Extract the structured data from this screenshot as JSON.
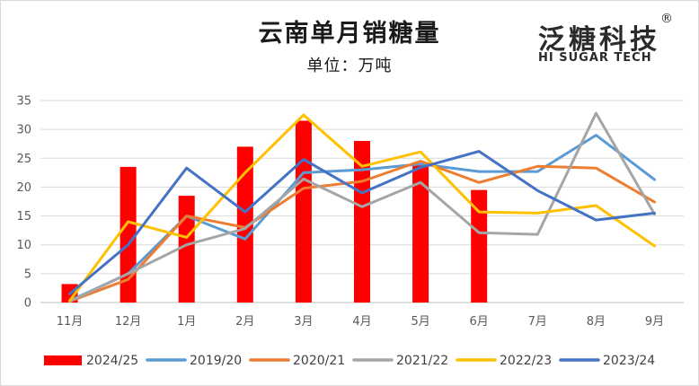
{
  "chart_data": {
    "type": "bar",
    "title": "云南单月销糖量",
    "subtitle": "单位：万吨",
    "categories": [
      "11月",
      "12月",
      "1月",
      "2月",
      "3月",
      "4月",
      "5月",
      "6月",
      "7月",
      "8月",
      "9月"
    ],
    "ylim": [
      0,
      35
    ],
    "yticks": [
      0,
      5,
      10,
      15,
      20,
      25,
      30,
      35
    ],
    "grid": true,
    "legend_position": "bottom",
    "bar_series": [
      {
        "name": "2024/25",
        "color": "#ff0000",
        "values": [
          3.2,
          23.5,
          18.5,
          27.0,
          31.5,
          28.0,
          24.0,
          19.5
        ]
      }
    ],
    "line_series": [
      {
        "name": "2019/20",
        "color": "#5b9bd5",
        "values": [
          0.3,
          5.0,
          15.0,
          11.0,
          22.5,
          23.0,
          24.0,
          22.7,
          22.7,
          29.0,
          21.3
        ]
      },
      {
        "name": "2020/21",
        "color": "#ed7d31",
        "values": [
          0.2,
          4.0,
          15.0,
          13.0,
          19.8,
          21.0,
          24.5,
          20.8,
          23.6,
          23.3,
          17.4
        ]
      },
      {
        "name": "2021/22",
        "color": "#a5a5a5",
        "values": [
          0.2,
          5.0,
          10.0,
          12.8,
          21.4,
          16.6,
          20.8,
          12.1,
          11.8,
          32.8,
          15.3
        ]
      },
      {
        "name": "2022/23",
        "color": "#ffc000",
        "values": [
          0.3,
          14.0,
          11.3,
          22.5,
          32.5,
          23.6,
          26.1,
          15.7,
          15.5,
          16.8,
          9.8
        ]
      },
      {
        "name": "2023/24",
        "color": "#4472c4",
        "values": [
          1.5,
          10.0,
          23.3,
          15.7,
          24.8,
          19.0,
          23.4,
          26.2,
          19.4,
          14.3,
          15.5
        ]
      }
    ]
  },
  "logo": {
    "cn": "泛糖科技",
    "en": "HI SUGAR TECH",
    "mark": "®"
  }
}
